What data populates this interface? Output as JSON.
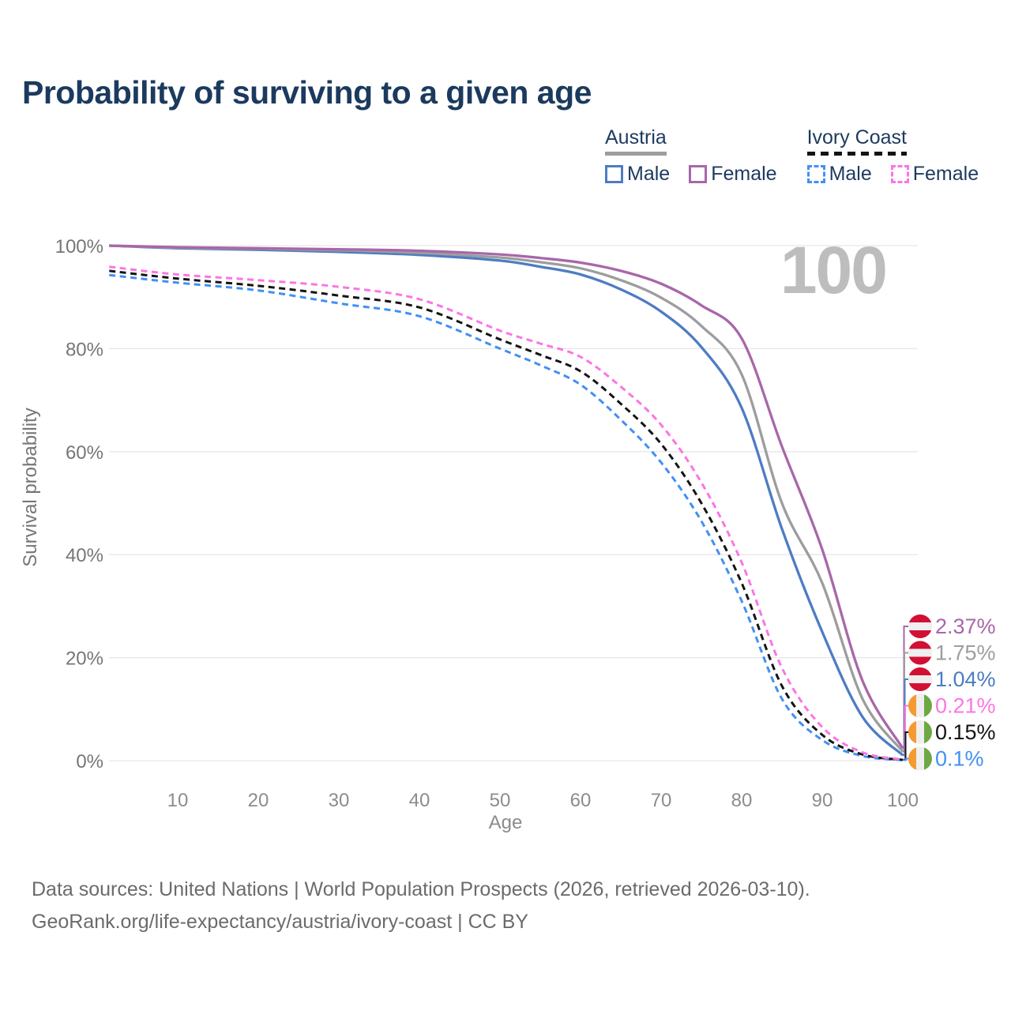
{
  "header": {
    "title": "Probability of surviving to a given age"
  },
  "legend": {
    "groups": [
      {
        "id": "austria",
        "label": "Austria",
        "line_style": "solid",
        "line_color": "#9d9d9d",
        "items": [
          {
            "label": "Male",
            "color": "#4d7cc3",
            "dashed": false
          },
          {
            "label": "Female",
            "color": "#a867a8",
            "dashed": false
          }
        ]
      },
      {
        "id": "ivory-coast",
        "label": "Ivory Coast",
        "line_style": "dashed",
        "line_color": "#141414",
        "items": [
          {
            "label": "Male",
            "color": "#4190f4",
            "dashed": true
          },
          {
            "label": "Female",
            "color": "#fb75e4",
            "dashed": true
          }
        ]
      }
    ]
  },
  "watermark": "100",
  "footer": {
    "line1": "Data sources: United Nations | World Population Prospects (2026, retrieved 2026-03-10).",
    "line2": "GeoRank.org/life-expectancy/austria/ivory-coast | CC BY"
  },
  "theme": {
    "title_color": "#1b3a5e",
    "grid_color": "#e7e7e7",
    "y_tick_color": "#767676",
    "x_tick_color": "#8c8c8c",
    "watermark_color": "#bdbdbd",
    "footer_color": "#6b6b6b",
    "flag_austria_red": "#d21034",
    "flag_ivory_orange": "#f49a33",
    "flag_ivory_green": "#6ea744",
    "flag_white": "#efefef"
  },
  "chart_data": {
    "type": "line",
    "title": "Probability of surviving to a given age",
    "xlabel": "Age",
    "ylabel": "Survival probability",
    "xlim": [
      0,
      100
    ],
    "ylim": [
      0,
      100
    ],
    "grid": "horizontal",
    "legend_position": "top-right",
    "x_ticks": [
      10,
      20,
      30,
      40,
      50,
      60,
      70,
      80,
      90,
      100
    ],
    "y_ticks": [
      {
        "label": "100%",
        "value": 100
      },
      {
        "label": "80%",
        "value": 80
      },
      {
        "label": "60%",
        "value": 60
      },
      {
        "label": "40%",
        "value": 40
      },
      {
        "label": "20%",
        "value": 20
      },
      {
        "label": "0%",
        "value": 0
      }
    ],
    "highlight_age": "100",
    "x": [
      1.5,
      10,
      20,
      30,
      40,
      50,
      55,
      60,
      65,
      70,
      75,
      80,
      85,
      90,
      95,
      100
    ],
    "series": [
      {
        "name": "Austria Female",
        "color": "#a867a8",
        "dash": "solid",
        "flag": "austria",
        "end_label": "2.37%",
        "values": [
          100,
          99.7,
          99.5,
          99.3,
          99.0,
          98.3,
          97.6,
          96.7,
          95.1,
          92.6,
          88.4,
          82,
          61,
          41,
          15.5,
          2.37
        ]
      },
      {
        "name": "Austria",
        "color": "#9d9d9d",
        "dash": "solid",
        "flag": "austria",
        "end_label": "1.75%",
        "values": [
          100,
          99.6,
          99.4,
          99.1,
          98.6,
          97.7,
          96.8,
          95.6,
          93.3,
          89.9,
          84.4,
          75,
          50,
          34.5,
          12,
          1.75
        ]
      },
      {
        "name": "Austria Male",
        "color": "#4d7cc3",
        "dash": "solid",
        "flag": "austria",
        "end_label": "1.04%",
        "values": [
          100,
          99.5,
          99.2,
          98.8,
          98.2,
          97.1,
          95.9,
          94.4,
          91.5,
          87.2,
          80.3,
          68.5,
          45,
          25,
          8.5,
          1.04
        ]
      },
      {
        "name": "Ivory Coast Female",
        "color": "#fb75e4",
        "dash": "dashed",
        "flag": "ivory-coast",
        "end_label": "0.21%",
        "values": [
          95.9,
          94.4,
          93.3,
          92.0,
          89.6,
          83.5,
          81.0,
          78.4,
          72.6,
          65.2,
          54,
          38.5,
          18,
          6.5,
          1.6,
          0.21
        ]
      },
      {
        "name": "Ivory Coast",
        "color": "#141414",
        "dash": "dashed",
        "flag": "ivory-coast",
        "end_label": "0.15%",
        "values": [
          95.1,
          93.6,
          92.2,
          90.3,
          88.0,
          81.8,
          78.8,
          75.6,
          69.3,
          61.5,
          50,
          34.5,
          14.5,
          5.0,
          1.2,
          0.15
        ]
      },
      {
        "name": "Ivory Coast Male",
        "color": "#4190f4",
        "dash": "dashed",
        "flag": "ivory-coast",
        "end_label": "0.1%",
        "values": [
          94.3,
          92.8,
          91.3,
          88.8,
          86.3,
          80.0,
          76.8,
          73.0,
          66.2,
          57.9,
          46.5,
          31,
          12,
          4.0,
          0.9,
          0.1
        ]
      }
    ]
  }
}
